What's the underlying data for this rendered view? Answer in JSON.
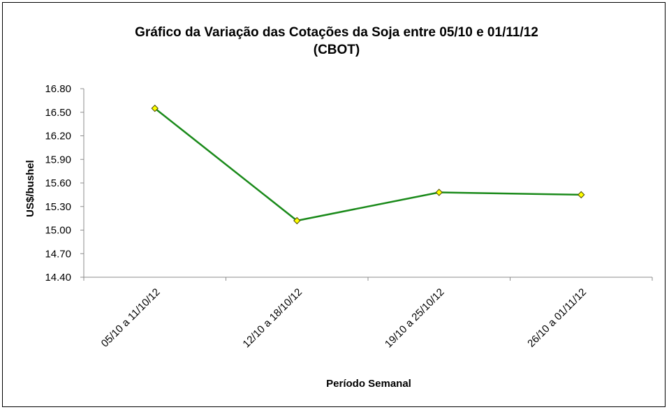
{
  "chart_data": {
    "type": "line",
    "title": "Gráfico da Variação das Cotações da Soja entre 05/10 e 01/11/12",
    "subtitle": "(CBOT)",
    "xlabel": "Período Semanal",
    "ylabel": "US$/bushel",
    "categories": [
      "05/10 a 11/10/12",
      "12/10 a 18/10/12",
      "19/10 a 25/10/12",
      "26/10 a 01/11/12"
    ],
    "values": [
      16.55,
      15.12,
      15.48,
      15.45
    ],
    "ylim": [
      14.4,
      16.8
    ],
    "yticks": [
      "14.40",
      "14.70",
      "15.00",
      "15.30",
      "15.60",
      "15.90",
      "16.20",
      "16.50",
      "16.80"
    ],
    "grid": false,
    "legend": "none",
    "colors": {
      "line": "#1a8a1a",
      "marker_fill": "#ffff00",
      "marker_stroke": "#4a4a00",
      "axis": "#8c8c8c"
    }
  }
}
